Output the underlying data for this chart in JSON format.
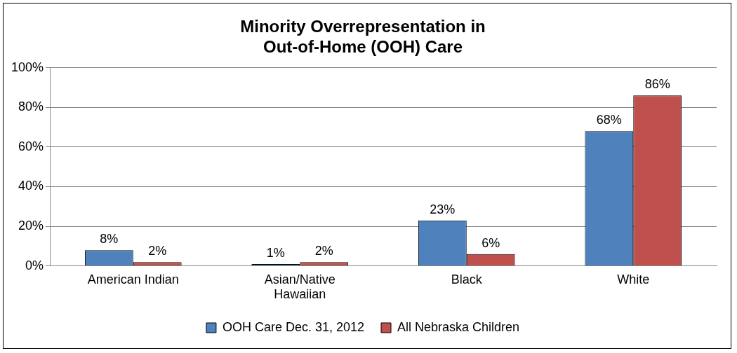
{
  "chart_data": {
    "type": "bar",
    "title": "Minority Overrepresentation in Out-of-Home (OOH) Care",
    "categories": [
      "American Indian",
      "Asian/Native Hawaiian",
      "Black",
      "White"
    ],
    "series": [
      {
        "name": "OOH Care Dec. 31, 2012",
        "color": "#4f81bd",
        "values": [
          8,
          1,
          23,
          68
        ],
        "value_labels": [
          "8%",
          "1%",
          "23%",
          "68%"
        ]
      },
      {
        "name": "All Nebraska Children",
        "color": "#c0504d",
        "values": [
          2,
          2,
          6,
          86
        ],
        "value_labels": [
          "2%",
          "2%",
          "6%",
          "86%"
        ]
      }
    ],
    "ylim": [
      0,
      100
    ],
    "yticks": [
      {
        "value": 0,
        "label": "0%"
      },
      {
        "value": 20,
        "label": "20%"
      },
      {
        "value": 40,
        "label": "40%"
      },
      {
        "value": 60,
        "label": "60%"
      },
      {
        "value": 80,
        "label": "80%"
      },
      {
        "value": 100,
        "label": "100%"
      }
    ],
    "grid": "y",
    "legend": "bottom"
  }
}
